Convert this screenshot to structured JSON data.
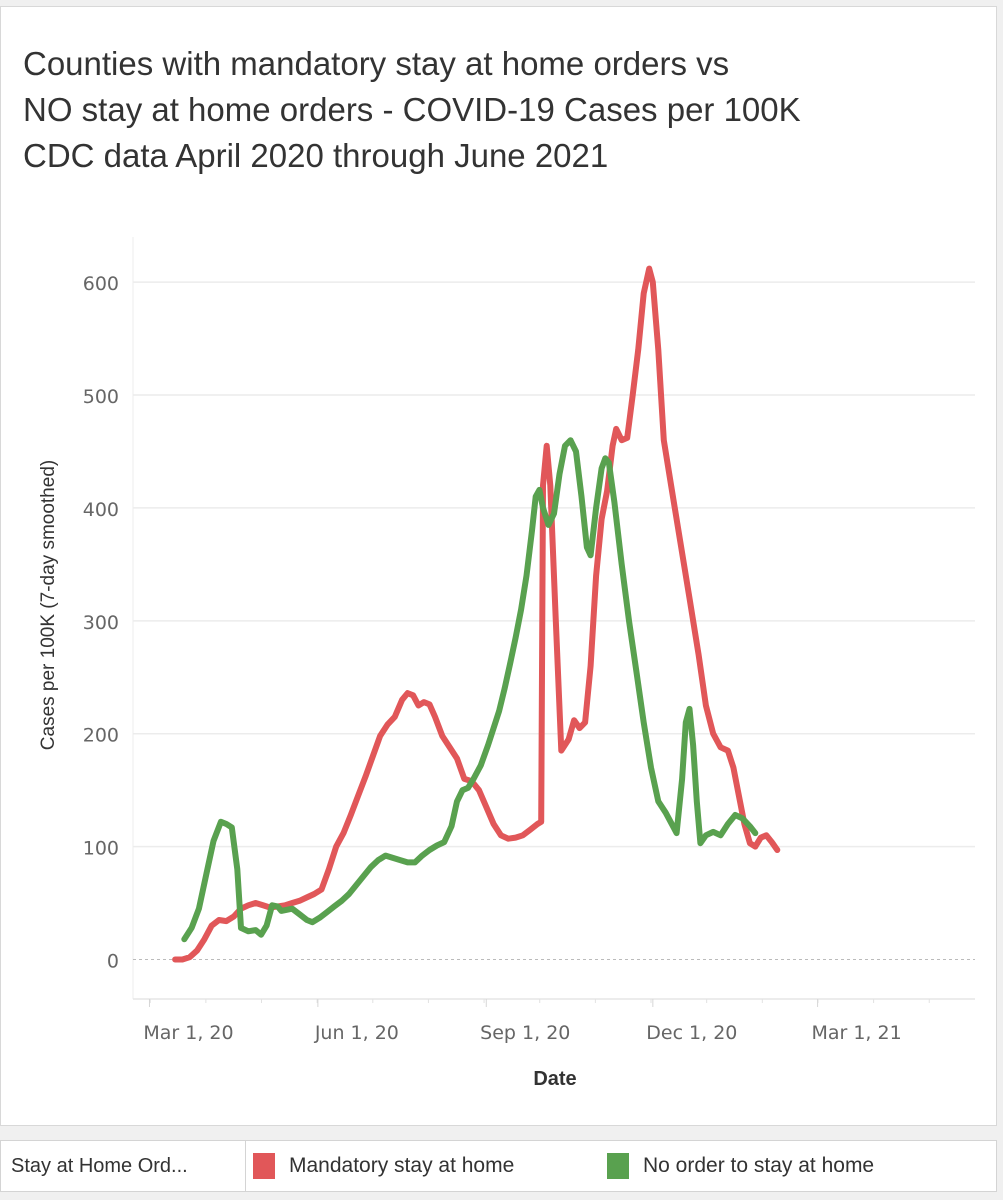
{
  "chart_data": {
    "type": "line",
    "title_lines": [
      "Counties with mandatory stay at home orders vs",
      "NO stay at home orders - COVID-19 Cases per 100K",
      "CDC data April 2020 through June 2021"
    ],
    "xlabel": "Date",
    "ylabel": "Cases per 100K (7-day smoothed)",
    "x_unit": "days since Mar 1, 2020",
    "xlim": [
      -9,
      451
    ],
    "ylim": [
      -35,
      640
    ],
    "x_ticks": [
      {
        "day": 0,
        "label": "Mar 1, 20"
      },
      {
        "day": 92,
        "label": "Jun 1, 20"
      },
      {
        "day": 184,
        "label": "Sep 1, 20"
      },
      {
        "day": 275,
        "label": "Dec 1, 20"
      },
      {
        "day": 365,
        "label": "Mar 1, 21"
      }
    ],
    "y_ticks": [
      0,
      100,
      200,
      300,
      400,
      500,
      600
    ],
    "grid": true,
    "zero_line": "dashed",
    "series": [
      {
        "name": "Mandatory stay at home",
        "color": "#e15759",
        "points": [
          [
            14,
            0
          ],
          [
            18,
            0
          ],
          [
            22,
            2
          ],
          [
            26,
            8
          ],
          [
            30,
            18
          ],
          [
            34,
            30
          ],
          [
            38,
            35
          ],
          [
            42,
            34
          ],
          [
            46,
            38
          ],
          [
            50,
            45
          ],
          [
            54,
            48
          ],
          [
            58,
            50
          ],
          [
            62,
            48
          ],
          [
            66,
            46
          ],
          [
            70,
            47
          ],
          [
            74,
            48
          ],
          [
            78,
            50
          ],
          [
            82,
            52
          ],
          [
            86,
            55
          ],
          [
            90,
            58
          ],
          [
            94,
            62
          ],
          [
            98,
            80
          ],
          [
            102,
            100
          ],
          [
            106,
            112
          ],
          [
            110,
            128
          ],
          [
            114,
            145
          ],
          [
            118,
            162
          ],
          [
            122,
            180
          ],
          [
            126,
            198
          ],
          [
            130,
            208
          ],
          [
            134,
            215
          ],
          [
            138,
            230
          ],
          [
            141,
            236
          ],
          [
            144,
            234
          ],
          [
            147,
            225
          ],
          [
            150,
            228
          ],
          [
            153,
            226
          ],
          [
            156,
            215
          ],
          [
            160,
            198
          ],
          [
            164,
            188
          ],
          [
            168,
            178
          ],
          [
            172,
            160
          ],
          [
            176,
            158
          ],
          [
            180,
            150
          ],
          [
            184,
            135
          ],
          [
            188,
            120
          ],
          [
            192,
            110
          ],
          [
            196,
            107
          ],
          [
            200,
            108
          ],
          [
            204,
            110
          ],
          [
            208,
            115
          ],
          [
            212,
            120
          ],
          [
            214,
            122
          ],
          [
            215,
            420
          ],
          [
            217,
            455
          ],
          [
            219,
            420
          ],
          [
            222,
            300
          ],
          [
            225,
            185
          ],
          [
            229,
            195
          ],
          [
            232,
            212
          ],
          [
            235,
            205
          ],
          [
            238,
            210
          ],
          [
            241,
            260
          ],
          [
            244,
            340
          ],
          [
            247,
            390
          ],
          [
            250,
            415
          ],
          [
            253,
            455
          ],
          [
            255,
            470
          ],
          [
            258,
            460
          ],
          [
            261,
            462
          ],
          [
            264,
            500
          ],
          [
            267,
            540
          ],
          [
            270,
            590
          ],
          [
            273,
            612
          ],
          [
            275,
            600
          ],
          [
            278,
            540
          ],
          [
            281,
            460
          ],
          [
            285,
            420
          ],
          [
            290,
            370
          ],
          [
            295,
            320
          ],
          [
            300,
            270
          ],
          [
            304,
            225
          ],
          [
            308,
            200
          ],
          [
            312,
            188
          ],
          [
            316,
            185
          ],
          [
            319,
            170
          ],
          [
            322,
            145
          ],
          [
            325,
            120
          ],
          [
            328,
            103
          ],
          [
            331,
            100
          ],
          [
            334,
            108
          ],
          [
            337,
            110
          ],
          [
            340,
            104
          ],
          [
            343,
            97
          ]
        ]
      },
      {
        "name": "No order to stay at home",
        "color": "#59a14f",
        "points": [
          [
            19,
            18
          ],
          [
            23,
            28
          ],
          [
            27,
            45
          ],
          [
            31,
            75
          ],
          [
            35,
            105
          ],
          [
            39,
            122
          ],
          [
            42,
            120
          ],
          [
            45,
            117
          ],
          [
            48,
            80
          ],
          [
            50,
            28
          ],
          [
            54,
            25
          ],
          [
            58,
            26
          ],
          [
            61,
            22
          ],
          [
            64,
            30
          ],
          [
            67,
            48
          ],
          [
            70,
            47
          ],
          [
            72,
            43
          ],
          [
            75,
            44
          ],
          [
            78,
            45
          ],
          [
            82,
            40
          ],
          [
            86,
            35
          ],
          [
            89,
            33
          ],
          [
            93,
            37
          ],
          [
            97,
            42
          ],
          [
            101,
            47
          ],
          [
            105,
            52
          ],
          [
            109,
            58
          ],
          [
            113,
            66
          ],
          [
            117,
            74
          ],
          [
            121,
            82
          ],
          [
            125,
            88
          ],
          [
            129,
            92
          ],
          [
            133,
            90
          ],
          [
            137,
            88
          ],
          [
            141,
            86
          ],
          [
            145,
            86
          ],
          [
            149,
            92
          ],
          [
            153,
            97
          ],
          [
            157,
            101
          ],
          [
            161,
            104
          ],
          [
            165,
            118
          ],
          [
            168,
            140
          ],
          [
            171,
            150
          ],
          [
            174,
            152
          ],
          [
            177,
            160
          ],
          [
            181,
            172
          ],
          [
            185,
            190
          ],
          [
            188,
            205
          ],
          [
            191,
            220
          ],
          [
            194,
            240
          ],
          [
            197,
            262
          ],
          [
            200,
            285
          ],
          [
            203,
            310
          ],
          [
            206,
            340
          ],
          [
            209,
            380
          ],
          [
            211,
            410
          ],
          [
            213,
            416
          ],
          [
            215,
            400
          ],
          [
            218,
            385
          ],
          [
            221,
            395
          ],
          [
            224,
            430
          ],
          [
            227,
            455
          ],
          [
            230,
            460
          ],
          [
            233,
            450
          ],
          [
            236,
            410
          ],
          [
            239,
            365
          ],
          [
            241,
            358
          ],
          [
            244,
            400
          ],
          [
            247,
            435
          ],
          [
            249,
            444
          ],
          [
            251,
            440
          ],
          [
            254,
            405
          ],
          [
            258,
            350
          ],
          [
            262,
            300
          ],
          [
            266,
            255
          ],
          [
            270,
            210
          ],
          [
            274,
            170
          ],
          [
            278,
            140
          ],
          [
            282,
            130
          ],
          [
            286,
            118
          ],
          [
            288,
            112
          ],
          [
            291,
            160
          ],
          [
            293,
            210
          ],
          [
            295,
            222
          ],
          [
            297,
            190
          ],
          [
            299,
            140
          ],
          [
            301,
            103
          ],
          [
            304,
            110
          ],
          [
            308,
            113
          ],
          [
            312,
            110
          ],
          [
            316,
            120
          ],
          [
            320,
            128
          ],
          [
            324,
            125
          ],
          [
            328,
            118
          ],
          [
            331,
            112
          ]
        ]
      }
    ]
  },
  "legend": {
    "title": "Stay at Home Ord...",
    "items": [
      {
        "label": "Mandatory stay at home",
        "color": "#e15759"
      },
      {
        "label": "No order to stay at home",
        "color": "#59a14f"
      }
    ]
  }
}
